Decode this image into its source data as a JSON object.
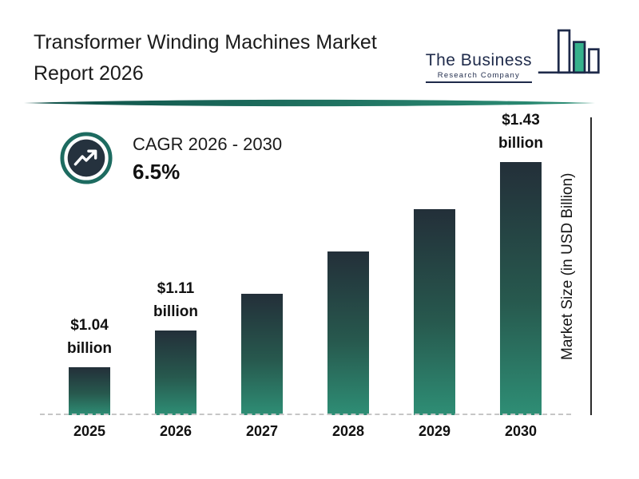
{
  "header": {
    "title_line1": "Transformer Winding Machines Market",
    "title_line2": "Report 2026",
    "logo": {
      "line1": "The Business",
      "line2": "Research Company"
    }
  },
  "cagr": {
    "label": "CAGR 2026 - 2030",
    "value": "6.5%"
  },
  "chart_data": {
    "type": "bar",
    "title": "Transformer Winding Machines Market Report 2026",
    "categories": [
      "2025",
      "2026",
      "2027",
      "2028",
      "2029",
      "2030"
    ],
    "values": [
      1.04,
      1.11,
      1.18,
      1.26,
      1.34,
      1.43
    ],
    "unit": "USD Billion",
    "value_labels": [
      {
        "amount": "$1.04",
        "unit": "billion"
      },
      {
        "amount": "$1.11",
        "unit": "billion"
      },
      null,
      null,
      null,
      {
        "amount": "$1.43",
        "unit": "billion"
      }
    ],
    "xlabel": "",
    "ylabel": "Market Size (in USD Billion)",
    "ylim": [
      0.95,
      1.53
    ],
    "grid": false,
    "legend": false,
    "annotations": [
      "CAGR 2026 - 2030: 6.5%"
    ]
  },
  "colors": {
    "bar_gradient_top": "#232f39",
    "bar_gradient_bottom": "#2e8e75",
    "accent_teal": "#1d6b60",
    "divider_dark": "#0f5048",
    "divider_light": "#2e9077",
    "navy": "#1e2a4a",
    "logo_green": "#36b18c",
    "text": "#161616"
  }
}
